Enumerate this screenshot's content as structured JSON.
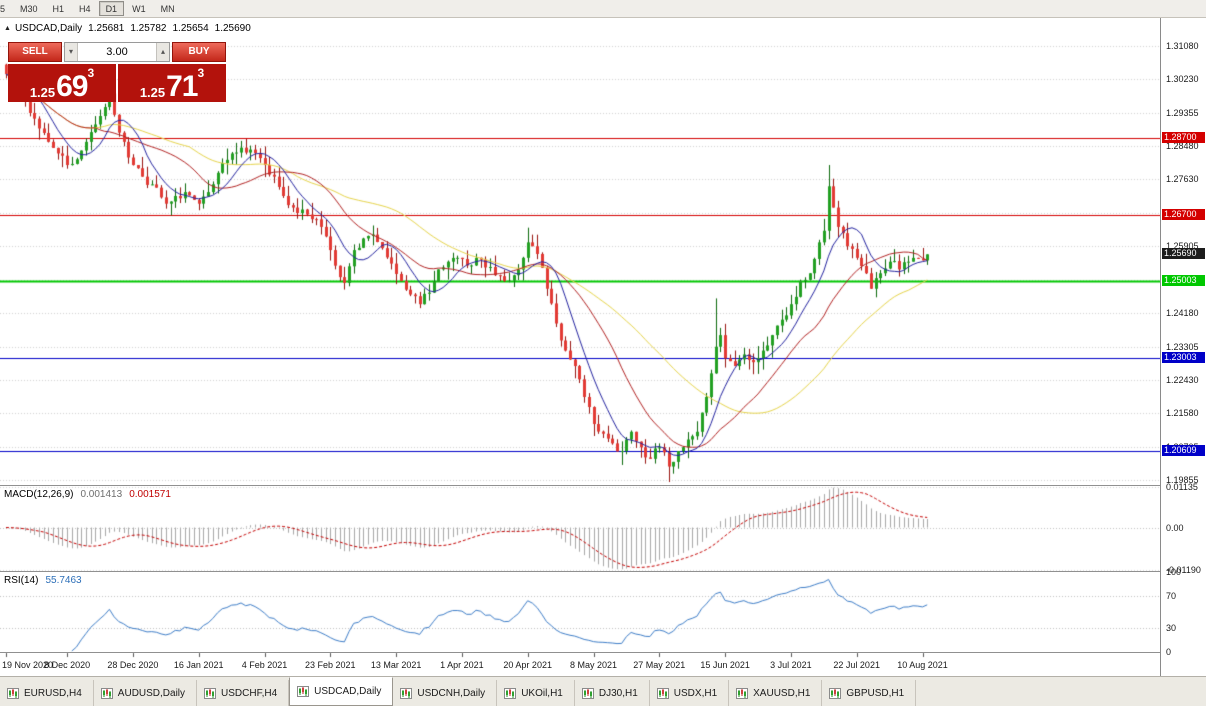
{
  "toolbar": {
    "buttons": [
      "5",
      "M30",
      "H1",
      "H4",
      "D1",
      "W1",
      "MN"
    ],
    "active": "D1"
  },
  "chart_header": {
    "symbol": "USDCAD,Daily",
    "open": "1.25681",
    "high": "1.25782",
    "low": "1.25654",
    "close": "1.25690"
  },
  "trade": {
    "sell_label": "SELL",
    "buy_label": "BUY",
    "volume": "3.00",
    "sell_price_prefix": "1.25",
    "sell_price_big": "69",
    "sell_price_pip": "3",
    "buy_price_prefix": "1.25",
    "buy_price_big": "71",
    "buy_price_pip": "3"
  },
  "price_axis": {
    "labels": [
      {
        "text": "1.31080",
        "value": 1.3108
      },
      {
        "text": "1.30230",
        "value": 1.3023
      },
      {
        "text": "1.29355",
        "value": 1.29355
      },
      {
        "text": "1.28480",
        "value": 1.2848
      },
      {
        "text": "1.27630",
        "value": 1.2763
      },
      {
        "text": "1.26755",
        "value": 1.26755
      },
      {
        "text": "1.25905",
        "value": 1.25905
      },
      {
        "text": "1.25030",
        "value": 1.2503
      },
      {
        "text": "1.24180",
        "value": 1.2418
      },
      {
        "text": "1.23305",
        "value": 1.23305
      },
      {
        "text": "1.22430",
        "value": 1.2243
      },
      {
        "text": "1.21580",
        "value": 1.2158
      },
      {
        "text": "1.20705",
        "value": 1.20705
      },
      {
        "text": "1.19855",
        "value": 1.19855
      }
    ]
  },
  "levels": [
    {
      "label": "1.28700",
      "value": 1.287,
      "color": "#d40000",
      "line_width": 1
    },
    {
      "label": "1.26700",
      "value": 1.267,
      "color": "#d40000",
      "line_width": 1
    },
    {
      "label": "1.25003",
      "value": 1.25003,
      "color": "#00c800",
      "line_width": 2
    },
    {
      "label": "1.23003",
      "value": 1.23003,
      "color": "#0000c8",
      "line_width": 1
    },
    {
      "label": "1.20609",
      "value": 1.20609,
      "color": "#0000c8",
      "line_width": 1
    }
  ],
  "current_price": {
    "label": "1.25690",
    "value": 1.2569,
    "color": "#1c1c1c"
  },
  "macd_panel": {
    "title": "MACD(12,26,9)",
    "value_main": "0.001413",
    "value_signal": "0.001571",
    "axis": [
      {
        "text": "0.01135",
        "value": 0.01135
      },
      {
        "text": "0.00",
        "value": 0
      },
      {
        "text": "-0.01190",
        "value": -0.0119
      }
    ]
  },
  "rsi_panel": {
    "title": "RSI(14)",
    "value": "55.7463",
    "levels": [
      70,
      30
    ],
    "axis": [
      {
        "text": "100",
        "value": 100
      },
      {
        "text": "70",
        "value": 70
      },
      {
        "text": "30",
        "value": 30
      },
      {
        "text": "0",
        "value": 0
      }
    ]
  },
  "date_axis": [
    {
      "index": 0,
      "label": "19 Nov 2020"
    },
    {
      "index": 13,
      "label": "8 Dec 2020"
    },
    {
      "index": 27,
      "label": "28 Dec 2020"
    },
    {
      "index": 41,
      "label": "16 Jan 2021"
    },
    {
      "index": 55,
      "label": "4 Feb 2021"
    },
    {
      "index": 69,
      "label": "23 Feb 2021"
    },
    {
      "index": 83,
      "label": "13 Mar 2021"
    },
    {
      "index": 97,
      "label": "1 Apr 2021"
    },
    {
      "index": 111,
      "label": "20 Apr 2021"
    },
    {
      "index": 125,
      "label": "8 May 2021"
    },
    {
      "index": 139,
      "label": "27 May 2021"
    },
    {
      "index": 153,
      "label": "15 Jun 2021"
    },
    {
      "index": 167,
      "label": "3 Jul 2021"
    },
    {
      "index": 181,
      "label": "22 Jul 2021"
    },
    {
      "index": 195,
      "label": "10 Aug 2021"
    }
  ],
  "tabs": {
    "active_index": 3,
    "items": [
      "EURUSD,H4",
      "AUDUSD,Daily",
      "USDCHF,H4",
      "USDCAD,Daily",
      "USDCNH,Daily",
      "UKOil,H1",
      "DJ30,H1",
      "USDX,H1",
      "XAUUSD,H1",
      "GBPUSD,H1"
    ]
  },
  "chart_data": {
    "type": "candlestick",
    "symbol": "USDCAD",
    "timeframe": "Daily",
    "title": "USDCAD,Daily",
    "current_ohlc": {
      "open": 1.25681,
      "high": 1.25782,
      "low": 1.25654,
      "close": 1.2569
    },
    "bar_count": 197,
    "seed": 42,
    "price_range": {
      "top": 1.31804,
      "bottom": 1.19723
    },
    "close_anchors": [
      [
        0,
        1.3035
      ],
      [
        2,
        1.301
      ],
      [
        4,
        1.2965
      ],
      [
        6,
        1.292
      ],
      [
        9,
        1.286
      ],
      [
        11,
        1.283
      ],
      [
        13,
        1.28
      ],
      [
        15,
        1.2815
      ],
      [
        17,
        1.286
      ],
      [
        19,
        1.2905
      ],
      [
        21,
        1.295
      ],
      [
        22,
        1.2985
      ],
      [
        23,
        1.293
      ],
      [
        25,
        1.286
      ],
      [
        27,
        1.28
      ],
      [
        29,
        1.277
      ],
      [
        31,
        1.275
      ],
      [
        34,
        1.27
      ],
      [
        36,
        1.272
      ],
      [
        38,
        1.273
      ],
      [
        40,
        1.271
      ],
      [
        41,
        1.27
      ],
      [
        43,
        1.273
      ],
      [
        45,
        1.278
      ],
      [
        48,
        1.283
      ],
      [
        50,
        1.2845
      ],
      [
        52,
        1.284
      ],
      [
        55,
        1.28
      ],
      [
        57,
        1.277
      ],
      [
        59,
        1.272
      ],
      [
        61,
        1.269
      ],
      [
        63,
        1.2685
      ],
      [
        65,
        1.266
      ],
      [
        67,
        1.264
      ],
      [
        69,
        1.258
      ],
      [
        71,
        1.251
      ],
      [
        72,
        1.2495
      ],
      [
        74,
        1.258
      ],
      [
        76,
        1.261
      ],
      [
        78,
        1.262
      ],
      [
        80,
        1.2585
      ],
      [
        82,
        1.2545
      ],
      [
        84,
        1.25
      ],
      [
        86,
        1.2465
      ],
      [
        88,
        1.244
      ],
      [
        90,
        1.247
      ],
      [
        92,
        1.253
      ],
      [
        94,
        1.255
      ],
      [
        96,
        1.256
      ],
      [
        98,
        1.254
      ],
      [
        100,
        1.256
      ],
      [
        102,
        1.2535
      ],
      [
        104,
        1.2515
      ],
      [
        106,
        1.25
      ],
      [
        108,
        1.2515
      ],
      [
        110,
        1.256
      ],
      [
        111,
        1.26
      ],
      [
        112,
        1.259
      ],
      [
        113,
        1.257
      ],
      [
        115,
        1.248
      ],
      [
        117,
        1.239
      ],
      [
        119,
        1.232
      ],
      [
        121,
        1.228
      ],
      [
        123,
        1.22
      ],
      [
        125,
        1.213
      ],
      [
        127,
        1.2105
      ],
      [
        129,
        1.208
      ],
      [
        131,
        1.206
      ],
      [
        133,
        1.211
      ],
      [
        135,
        1.207
      ],
      [
        137,
        1.204
      ],
      [
        139,
        1.207
      ],
      [
        141,
        1.202
      ],
      [
        143,
        1.206
      ],
      [
        145,
        1.209
      ],
      [
        147,
        1.211
      ],
      [
        149,
        1.22
      ],
      [
        151,
        1.233
      ],
      [
        152,
        1.236
      ],
      [
        153,
        1.23
      ],
      [
        155,
        1.228
      ],
      [
        157,
        1.231
      ],
      [
        159,
        1.229
      ],
      [
        161,
        1.232
      ],
      [
        163,
        1.236
      ],
      [
        165,
        1.24
      ],
      [
        167,
        1.244
      ],
      [
        169,
        1.25
      ],
      [
        171,
        1.252
      ],
      [
        173,
        1.26
      ],
      [
        174,
        1.263
      ],
      [
        175,
        1.2745
      ],
      [
        176,
        1.269
      ],
      [
        177,
        1.264
      ],
      [
        179,
        1.259
      ],
      [
        181,
        1.256
      ],
      [
        183,
        1.252
      ],
      [
        184,
        1.248
      ],
      [
        186,
        1.252
      ],
      [
        188,
        1.255
      ],
      [
        190,
        1.253
      ],
      [
        192,
        1.255
      ],
      [
        194,
        1.2558
      ],
      [
        196,
        1.2569
      ]
    ],
    "wick_overrides": {
      "111": 0.0038,
      "151": 0.0125,
      "175": 0.0055
    },
    "low_wick_overrides": {
      "131": 0.0035,
      "141": 0.004
    },
    "ma_periods": {
      "fast": 8,
      "mid": 20,
      "slow": 40
    },
    "macd": {
      "fast": 12,
      "slow": 26,
      "signal": 9
    },
    "rsi_period": 14,
    "colors": {
      "up": "#22a022",
      "up_border": "#0c6a0c",
      "down": "#e23a34",
      "down_border": "#991410",
      "ma_fast": "#2323a0",
      "ma_mid": "#b22222",
      "ma_slow": "#e6d44a",
      "macd_hist": "#a8a8a8",
      "macd_signal": "#c40000",
      "rsi": "#3d7dc8",
      "grid": "#d2d2d2"
    }
  }
}
